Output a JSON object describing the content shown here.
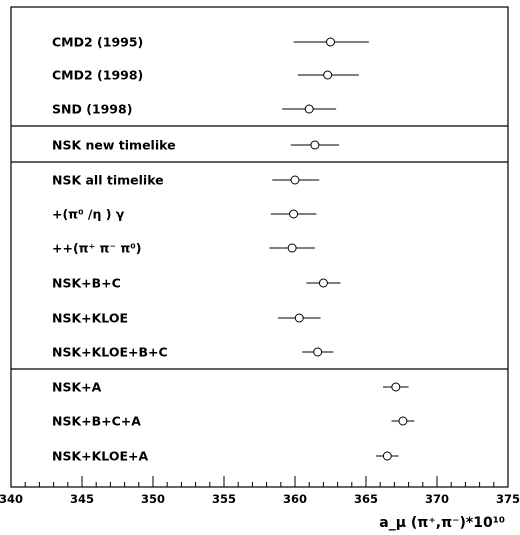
{
  "chart_data": {
    "type": "scatter",
    "orientation": "horizontal",
    "xlabel": "a_μ (π⁺,π⁻)*10¹⁰",
    "xlim": [
      340,
      375
    ],
    "xticks": [
      340,
      345,
      350,
      355,
      360,
      365,
      370,
      375
    ],
    "points": [
      {
        "label": "CMD2 (1995)",
        "value": 362.5,
        "err_low": 2.6,
        "err_high": 2.7,
        "group": 1
      },
      {
        "label": "CMD2 (1998)",
        "value": 362.3,
        "err_low": 2.1,
        "err_high": 2.2,
        "group": 1
      },
      {
        "label": "SND (1998)",
        "value": 361.0,
        "err_low": 1.9,
        "err_high": 1.9,
        "group": 1
      },
      {
        "label": "NSK new timelike",
        "value": 361.4,
        "err_low": 1.7,
        "err_high": 1.7,
        "group": 2
      },
      {
        "label": "NSK all timelike",
        "value": 360.0,
        "err_low": 1.6,
        "err_high": 1.7,
        "group": 3
      },
      {
        "label": "+(π⁰ /η ) γ",
        "value": 359.9,
        "err_low": 1.6,
        "err_high": 1.6,
        "group": 3
      },
      {
        "label": "++(π⁺ π⁻ π⁰)",
        "value": 359.8,
        "err_low": 1.6,
        "err_high": 1.6,
        "group": 3
      },
      {
        "label": "NSK+B+C",
        "value": 362.0,
        "err_low": 1.2,
        "err_high": 1.2,
        "group": 3
      },
      {
        "label": "NSK+KLOE",
        "value": 360.3,
        "err_low": 1.5,
        "err_high": 1.5,
        "group": 3
      },
      {
        "label": "NSK+KLOE+B+C",
        "value": 361.6,
        "err_low": 1.1,
        "err_high": 1.1,
        "group": 3
      },
      {
        "label": "NSK+A",
        "value": 367.1,
        "err_low": 0.9,
        "err_high": 0.9,
        "group": 4
      },
      {
        "label": "NSK+B+C+A",
        "value": 367.6,
        "err_low": 0.8,
        "err_high": 0.8,
        "group": 4
      },
      {
        "label": "NSK+KLOE+A",
        "value": 366.5,
        "err_low": 0.8,
        "err_high": 0.8,
        "group": 4
      }
    ],
    "grid": false,
    "legend": "none"
  }
}
